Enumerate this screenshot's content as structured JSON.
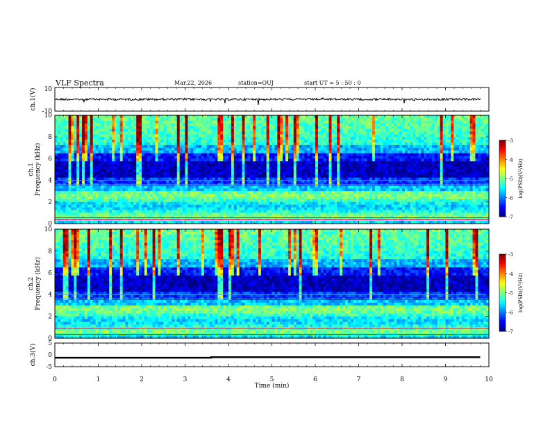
{
  "header": {
    "title": "VLF Spectra",
    "date": "Mar.22, 2026",
    "station": "station=OUJ",
    "start": "start UT =  5 : 50 : 0"
  },
  "colors": {
    "spectrogram_low": "#00007f",
    "spectrogram_high": "#ff0000",
    "trace": "#000000"
  },
  "chart_data": [
    {
      "type": "line",
      "panel": "ch1-waveform",
      "ylabel": "ch.1(V)",
      "ylim": [
        -10,
        10
      ],
      "yticks": [
        "10",
        "-10"
      ],
      "xlim": [
        0,
        10
      ],
      "series": [
        {
          "values_description_level": 0
        }
      ]
    },
    {
      "type": "heatmap",
      "panel": "ch1-spectrogram",
      "ylabel_top": "ch.1",
      "ylabel": "Frequency (kHz)",
      "ylim": [
        0,
        10
      ],
      "yticks": [
        "0",
        "2",
        "4",
        "6",
        "8",
        "10"
      ],
      "xlim": [
        0,
        10
      ],
      "colorbar": {
        "label": "log(PSD)(V²/Hz)",
        "range": [
          -7,
          -3
        ],
        "ticks": [
          "-3",
          "-4",
          "-5",
          "-6",
          "-7"
        ]
      }
    },
    {
      "type": "heatmap",
      "panel": "ch2-spectrogram",
      "ylabel_top": "ch.2",
      "ylabel": "Frequency (kHz)",
      "ylim": [
        0,
        10
      ],
      "yticks": [
        "0",
        "2",
        "4",
        "6",
        "8",
        "10"
      ],
      "xlim": [
        0,
        10
      ],
      "colorbar": {
        "label": "log(PSD)(V²/Hz)",
        "range": [
          -7,
          -3
        ],
        "ticks": [
          "-3",
          "-4",
          "-5",
          "-6",
          "-7"
        ]
      }
    },
    {
      "type": "line",
      "panel": "ch3-signal",
      "ylabel": "ch.3(V)",
      "ylim": [
        -5,
        5
      ],
      "yticks": [
        "5",
        "0",
        "-5"
      ],
      "xlim": [
        0,
        10
      ],
      "series": [
        {
          "x": [
            0,
            3.6,
            3.6,
            9.8
          ],
          "values": [
            -1.2,
            -1.2,
            -1.0,
            -1.0
          ]
        }
      ]
    }
  ],
  "xaxis": {
    "label": "Time (min)",
    "ticks": [
      "0",
      "1",
      "2",
      "3",
      "4",
      "5",
      "6",
      "7",
      "8",
      "9",
      "10"
    ]
  }
}
